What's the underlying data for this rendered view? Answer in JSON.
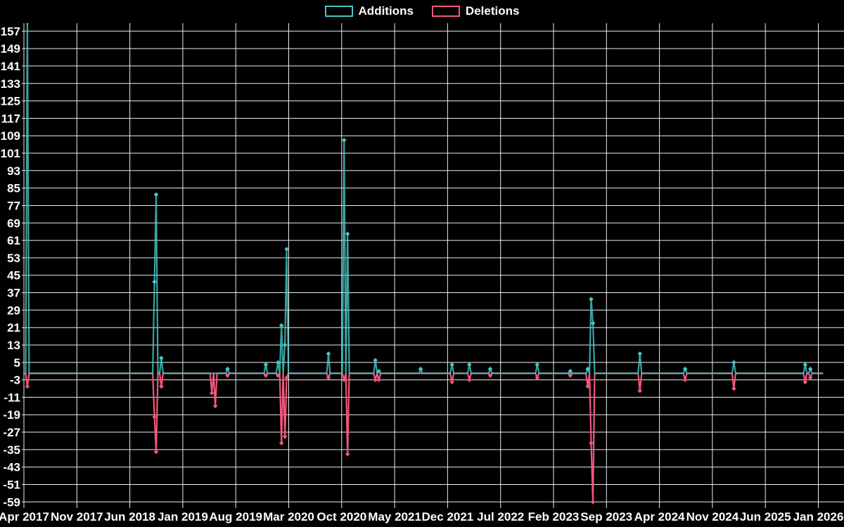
{
  "legend": {
    "additions_label": "Additions",
    "deletions_label": "Deletions"
  },
  "colors": {
    "additions": "#46c7c7",
    "deletions": "#f2577b",
    "grid": "#ededed",
    "background": "#000000",
    "text": "#ffffff"
  },
  "chart_data": {
    "type": "line",
    "title": "",
    "xlabel": "",
    "ylabel": "",
    "legend_position": "top-center",
    "grid": true,
    "x_tick_labels": [
      "Apr 2017",
      "Nov 2017",
      "Jun 2018",
      "Jan 2019",
      "Aug 2019",
      "Mar 2020",
      "Oct 2020",
      "May 2021",
      "Dec 2021",
      "Jul 2022",
      "Feb 2023",
      "Sep 2023",
      "Apr 2024",
      "Nov 2024",
      "Jun 2025",
      "Jan 2026"
    ],
    "x_tick_interval_months": 7,
    "y_tick_labels": [
      157,
      149,
      141,
      133,
      125,
      117,
      109,
      101,
      93,
      85,
      77,
      69,
      61,
      53,
      45,
      37,
      29,
      21,
      13,
      5,
      -3,
      -11,
      -19,
      -27,
      -35,
      -43,
      -51,
      -59
    ],
    "y_axis": {
      "min": -59,
      "max": 157,
      "step": 8
    },
    "series_names": [
      "Additions",
      "Deletions"
    ],
    "sampling": "weekly",
    "total_weeks": 459,
    "all_other_weeks_value": 0,
    "note": "Additions spike at Apr 2017 is clipped at the top of the plot (> 157).",
    "events": [
      {
        "week": 2,
        "approx_date": "Apr 2017",
        "additions": 161,
        "deletions": -6
      },
      {
        "week": 75,
        "approx_date": "Sep 2018",
        "additions": 42,
        "deletions": -20
      },
      {
        "week": 76,
        "approx_date": "Sep 2018",
        "additions": 82,
        "deletions": -36
      },
      {
        "week": 79,
        "approx_date": "Oct 2018",
        "additions": 7,
        "deletions": -6
      },
      {
        "week": 108,
        "approx_date": "May 2019",
        "additions": 0,
        "deletions": -9
      },
      {
        "week": 110,
        "approx_date": "May 2019",
        "additions": 0,
        "deletions": -15
      },
      {
        "week": 117,
        "approx_date": "Jul 2019",
        "additions": 2,
        "deletions": -1
      },
      {
        "week": 139,
        "approx_date": "Dec 2019",
        "additions": 4,
        "deletions": -1
      },
      {
        "week": 146,
        "approx_date": "Jan 2020",
        "additions": 5,
        "deletions": -1
      },
      {
        "week": 148,
        "approx_date": "Feb 2020",
        "additions": 22,
        "deletions": -32
      },
      {
        "week": 150,
        "approx_date": "Feb 2020",
        "additions": 13,
        "deletions": -29
      },
      {
        "week": 151,
        "approx_date": "Mar 2020",
        "additions": 57,
        "deletions": -2
      },
      {
        "week": 175,
        "approx_date": "Aug 2020",
        "additions": 9,
        "deletions": -2
      },
      {
        "week": 184,
        "approx_date": "Oct 2020",
        "additions": 107,
        "deletions": -3
      },
      {
        "week": 186,
        "approx_date": "Nov 2020",
        "additions": 64,
        "deletions": -37
      },
      {
        "week": 202,
        "approx_date": "Feb 2021",
        "additions": 6,
        "deletions": -3
      },
      {
        "week": 204,
        "approx_date": "Mar 2021",
        "additions": 1,
        "deletions": -3
      },
      {
        "week": 228,
        "approx_date": "Aug 2021",
        "additions": 2,
        "deletions": 0
      },
      {
        "week": 246,
        "approx_date": "Dec 2021",
        "additions": 4,
        "deletions": -4
      },
      {
        "week": 256,
        "approx_date": "Mar 2022",
        "additions": 4,
        "deletions": -3
      },
      {
        "week": 268,
        "approx_date": "May 2022",
        "additions": 2,
        "deletions": -1
      },
      {
        "week": 295,
        "approx_date": "Dec 2022",
        "additions": 4,
        "deletions": -2
      },
      {
        "week": 314,
        "approx_date": "Apr 2023",
        "additions": 1,
        "deletions": -1
      },
      {
        "week": 324,
        "approx_date": "Jun 2023",
        "additions": 2,
        "deletions": -6
      },
      {
        "week": 326,
        "approx_date": "Jul 2023",
        "additions": 34,
        "deletions": -32
      },
      {
        "week": 327,
        "approx_date": "Jul 2023",
        "additions": 23,
        "deletions": -59
      },
      {
        "week": 354,
        "approx_date": "Jan 2024",
        "additions": 9,
        "deletions": -8
      },
      {
        "week": 380,
        "approx_date": "Jul 2024",
        "additions": 2,
        "deletions": -3
      },
      {
        "week": 408,
        "approx_date": "Feb 2025",
        "additions": 5,
        "deletions": -7
      },
      {
        "week": 449,
        "approx_date": "Nov 2025",
        "additions": 4,
        "deletions": -4
      },
      {
        "week": 452,
        "approx_date": "Dec 2025",
        "additions": 2,
        "deletions": -2
      }
    ]
  }
}
